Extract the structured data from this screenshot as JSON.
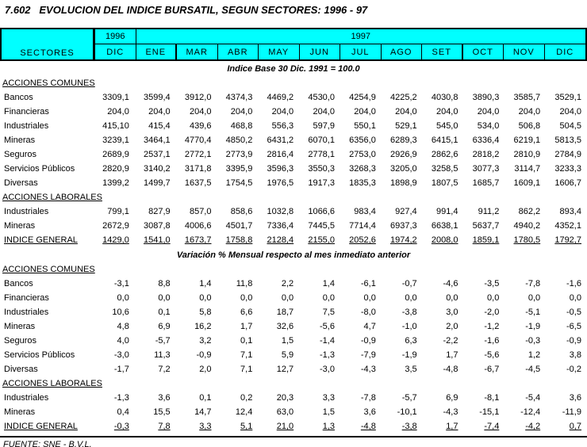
{
  "title": "7.602   EVOLUCION DEL INDICE BURSATIL, SEGUN SECTORES: 1996 - 97",
  "header": {
    "sectors_label": "SECTORES",
    "year_1996": "1996",
    "year_1997": "1997",
    "months": [
      "DIC",
      "ENE",
      "MAR",
      "ABR",
      "MAY",
      "JUN",
      "JUL",
      "AGO",
      "SET",
      "OCT",
      "NOV",
      "DIC"
    ]
  },
  "index_note": "Indice Base 30 Dic. 1991 = 100.0",
  "variation_note": "Variación % Mensual respecto al mes inmediato anterior",
  "footer": "FUENTE: SNE - B.V.L.",
  "header_color": "#00ffff",
  "index_table": {
    "sections": [
      {
        "label": "ACCIONES COMUNES",
        "rows": [
          {
            "label": "Bancos",
            "values": [
              "3309,1",
              "3599,4",
              "3912,0",
              "4374,3",
              "4469,2",
              "4530,0",
              "4254,9",
              "4225,2",
              "4030,8",
              "3890,3",
              "3585,7",
              "3529,1"
            ]
          },
          {
            "label": "Financieras",
            "values": [
              "204,0",
              "204,0",
              "204,0",
              "204,0",
              "204,0",
              "204,0",
              "204,0",
              "204,0",
              "204,0",
              "204,0",
              "204,0",
              "204,0"
            ]
          },
          {
            "label": "Industriales",
            "values": [
              "415,10",
              "415,4",
              "439,6",
              "468,8",
              "556,3",
              "597,9",
              "550,1",
              "529,1",
              "545,0",
              "534,0",
              "506,8",
              "504,5"
            ]
          },
          {
            "label": "Mineras",
            "values": [
              "3239,1",
              "3464,1",
              "4770,4",
              "4850,2",
              "6431,2",
              "6070,1",
              "6356,0",
              "6289,3",
              "6415,1",
              "6336,4",
              "6219,1",
              "5813,5"
            ]
          },
          {
            "label": "Seguros",
            "values": [
              "2689,9",
              "2537,1",
              "2772,1",
              "2773,9",
              "2816,4",
              "2778,1",
              "2753,0",
              "2926,9",
              "2862,6",
              "2818,2",
              "2810,9",
              "2784,9"
            ]
          },
          {
            "label": "Servicios Públicos",
            "values": [
              "2820,9",
              "3140,2",
              "3171,8",
              "3395,9",
              "3596,3",
              "3550,3",
              "3268,3",
              "3205,0",
              "3258,5",
              "3077,3",
              "3114,7",
              "3233,3"
            ]
          },
          {
            "label": "Diversas",
            "values": [
              "1399,2",
              "1499,7",
              "1637,5",
              "1754,5",
              "1976,5",
              "1917,3",
              "1835,3",
              "1898,9",
              "1807,5",
              "1685,7",
              "1609,1",
              "1606,7"
            ]
          }
        ]
      },
      {
        "label": "ACCIONES LABORALES",
        "rows": [
          {
            "label": "Industriales",
            "values": [
              "799,1",
              "827,9",
              "857,0",
              "858,6",
              "1032,8",
              "1066,6",
              "983,4",
              "927,4",
              "991,4",
              "911,2",
              "862,2",
              "893,4"
            ]
          },
          {
            "label": "Mineras",
            "values": [
              "2672,9",
              "3087,8",
              "4006,6",
              "4501,7",
              "7336,4",
              "7445,5",
              "7714,4",
              "6937,3",
              "6638,1",
              "5637,7",
              "4940,2",
              "4352,1"
            ]
          }
        ]
      }
    ],
    "total": {
      "label": "INDICE GENERAL",
      "values": [
        "1429,0",
        "1541,0",
        "1673,7",
        "1758,8",
        "2128,4",
        "2155,0",
        "2052,6",
        "1974,2",
        "2008,0",
        "1859,1",
        "1780,5",
        "1792,7"
      ]
    }
  },
  "variation_table": {
    "sections": [
      {
        "label": "ACCIONES COMUNES",
        "rows": [
          {
            "label": "Bancos",
            "values": [
              "-3,1",
              "8,8",
              "1,4",
              "11,8",
              "2,2",
              "1,4",
              "-6,1",
              "-0,7",
              "-4,6",
              "-3,5",
              "-7,8",
              "-1,6"
            ]
          },
          {
            "label": "Financieras",
            "values": [
              "0,0",
              "0,0",
              "0,0",
              "0,0",
              "0,0",
              "0,0",
              "0,0",
              "0,0",
              "0,0",
              "0,0",
              "0,0",
              "0,0"
            ]
          },
          {
            "label": "Industriales",
            "values": [
              "10,6",
              "0,1",
              "5,8",
              "6,6",
              "18,7",
              "7,5",
              "-8,0",
              "-3,8",
              "3,0",
              "-2,0",
              "-5,1",
              "-0,5"
            ]
          },
          {
            "label": "Mineras",
            "values": [
              "4,8",
              "6,9",
              "16,2",
              "1,7",
              "32,6",
              "-5,6",
              "4,7",
              "-1,0",
              "2,0",
              "-1,2",
              "-1,9",
              "-6,5"
            ]
          },
          {
            "label": "Seguros",
            "values": [
              "4,0",
              "-5,7",
              "3,2",
              "0,1",
              "1,5",
              "-1,4",
              "-0,9",
              "6,3",
              "-2,2",
              "-1,6",
              "-0,3",
              "-0,9"
            ]
          },
          {
            "label": "Servicios Públicos",
            "values": [
              "-3,0",
              "11,3",
              "-0,9",
              "7,1",
              "5,9",
              "-1,3",
              "-7,9",
              "-1,9",
              "1,7",
              "-5,6",
              "1,2",
              "3,8"
            ]
          },
          {
            "label": "Diversas",
            "values": [
              "-1,7",
              "7,2",
              "2,0",
              "7,1",
              "12,7",
              "-3,0",
              "-4,3",
              "3,5",
              "-4,8",
              "-6,7",
              "-4,5",
              "-0,2"
            ]
          }
        ]
      },
      {
        "label": "ACCIONES LABORALES",
        "rows": [
          {
            "label": "Industriales",
            "values": [
              "-1,3",
              "3,6",
              "0,1",
              "0,2",
              "20,3",
              "3,3",
              "-7,8",
              "-5,7",
              "6,9",
              "-8,1",
              "-5,4",
              "3,6"
            ]
          },
          {
            "label": "Mineras",
            "values": [
              "0,4",
              "15,5",
              "14,7",
              "12,4",
              "63,0",
              "1,5",
              "3,6",
              "-10,1",
              "-4,3",
              "-15,1",
              "-12,4",
              "-11,9"
            ]
          }
        ]
      }
    ],
    "total": {
      "label": "INDICE GENERAL",
      "values": [
        "-0,3",
        "7,8",
        "3,3",
        "5,1",
        "21,0",
        "1,3",
        "-4,8",
        "-3,8",
        "1,7",
        "-7,4",
        "-4,2",
        "0,7"
      ]
    }
  }
}
